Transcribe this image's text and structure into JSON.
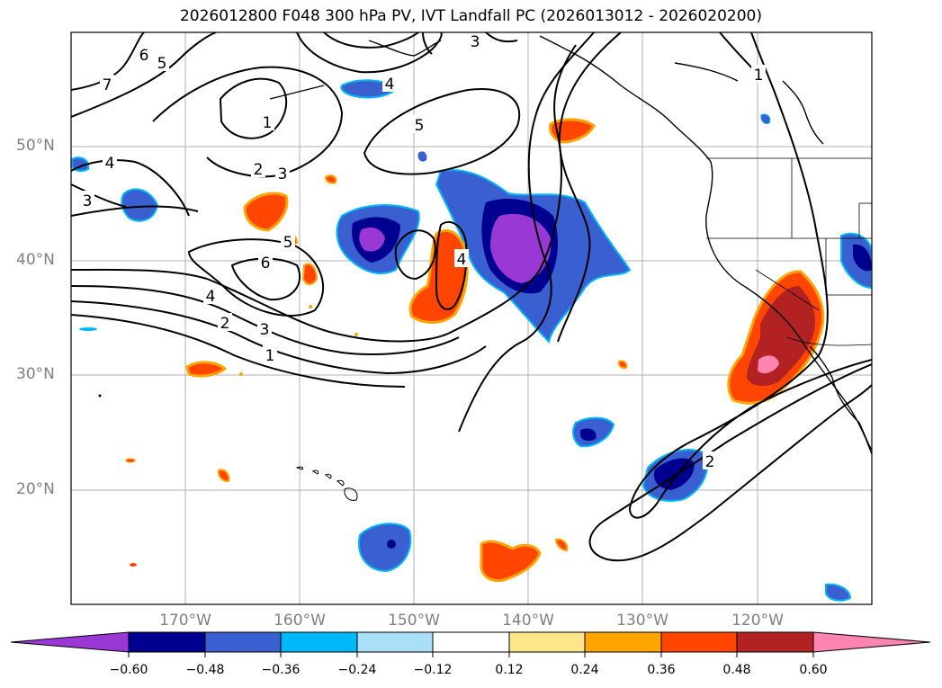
{
  "title": "2026012800 F048 300 hPa PV, IVT Landfall PC (2026013012 - 2026020200)",
  "lat_labels": [
    "50°N",
    "40°N",
    "30°N",
    "20°N"
  ],
  "lon_labels": [
    "170°W",
    "160°W",
    "150°W",
    "140°W",
    "130°W",
    "120°W"
  ],
  "colorbar": {
    "ticks": [
      "−0.60",
      "−0.48",
      "−0.36",
      "−0.24",
      "−0.12",
      "0.12",
      "0.24",
      "0.36",
      "0.48",
      "0.60"
    ],
    "colors": [
      "#9a38d6",
      "#000090",
      "#3a5fd0",
      "#00b8f8",
      "#aadff8",
      "#ffffff",
      "#fde68a",
      "#ffa500",
      "#ff4500",
      "#b22222",
      "#ff85b0"
    ]
  },
  "contour_labels": [
    "7",
    "6",
    "5",
    "1",
    "2",
    "3",
    "4",
    "3",
    "4",
    "6",
    "5",
    "4",
    "3",
    "2",
    "1",
    "5",
    "4",
    "3",
    "1",
    "2"
  ]
}
